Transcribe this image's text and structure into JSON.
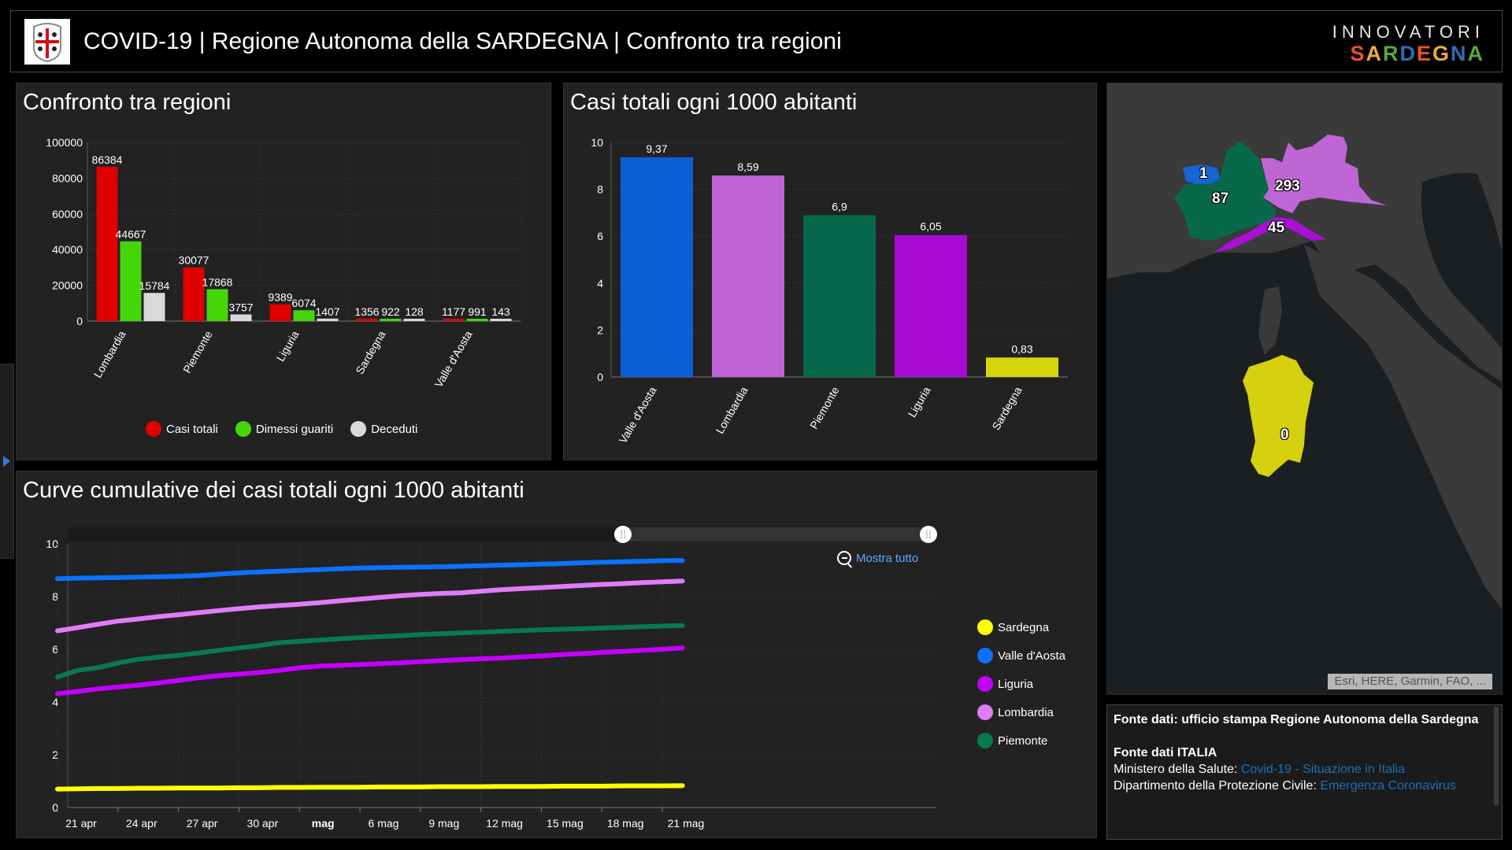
{
  "header": {
    "title": "COVID-19 | Regione Autonoma della SARDEGNA | Confronto tra regioni",
    "logo_icon": "sardinia-coat-of-arms-icon",
    "brand_top": "INNOVATORI",
    "brand_bottom_letters": [
      "S",
      "A",
      "R",
      "D",
      "E",
      "G",
      "N",
      "A"
    ],
    "brand_bottom_colors": [
      "#e8532b",
      "#f2a93b",
      "#5aa83c",
      "#2f6db5",
      "#e8532b",
      "#f2a93b",
      "#2f6db5",
      "#5aa83c"
    ]
  },
  "panels": {
    "bar1_title": "Confronto tra regioni",
    "bar2_title": "Casi totali ogni 1000 abitanti",
    "line_title": "Curve cumulative dei casi totali ogni 1000 abitanti"
  },
  "map": {
    "attribution": "Esri, HERE, Garmin, FAO, ...",
    "labels": [
      {
        "region": "Valle d'Aosta",
        "value": "1",
        "color": "#1565d8"
      },
      {
        "region": "Piemonte",
        "value": "87",
        "color": "#08694a"
      },
      {
        "region": "Lombardia",
        "value": "293",
        "color": "#be66d6"
      },
      {
        "region": "Liguria",
        "value": "45",
        "color": "#a90fd4"
      },
      {
        "region": "Sardegna",
        "value": "0",
        "color": "#d6d00f"
      }
    ]
  },
  "info": {
    "line1": "Fonte dati: ufficio stampa Regione Autonoma della Sardegna",
    "line2": "Fonte dati ITALIA",
    "ministero_label": "Ministero della Salute: ",
    "ministero_link": "Covid-19 - Situazione in Italia",
    "protezione_label": "Dipartimento della Protezione Civile: ",
    "protezione_link": "Emergenza Coronavirus"
  },
  "line_controls": {
    "show_all_label": "Mostra tutto",
    "zoom_range_start": 0.645,
    "zoom_range_end": 1.0
  },
  "chart_data": [
    {
      "type": "bar",
      "title": "Confronto tra regioni",
      "categories": [
        "Lombardia",
        "Piemonte",
        "Liguria",
        "Sardegna",
        "Valle d'Aosta"
      ],
      "series": [
        {
          "name": "Casi totali",
          "color": "#e00000",
          "values": [
            86384,
            30077,
            9389,
            1356,
            1177
          ]
        },
        {
          "name": "Dimessi guariti",
          "color": "#45d60a",
          "values": [
            44667,
            17868,
            6074,
            922,
            991
          ]
        },
        {
          "name": "Deceduti",
          "color": "#d9d9d9",
          "values": [
            15784,
            3757,
            1407,
            128,
            143
          ]
        }
      ],
      "yticks": [
        "0",
        "20000",
        "40000",
        "60000",
        "80000",
        "100000"
      ],
      "ylim": [
        0,
        100000
      ],
      "xlabel": "",
      "ylabel": "",
      "legend": "bottom",
      "grid": true
    },
    {
      "type": "bar",
      "title": "Casi totali ogni 1000 abitanti",
      "categories": [
        "Valle d'Aosta",
        "Lombardia",
        "Piemonte",
        "Liguria",
        "Sardegna"
      ],
      "values": [
        9.37,
        8.59,
        6.9,
        6.05,
        0.83
      ],
      "labels": [
        "9,37",
        "8,59",
        "6,9",
        "6,05",
        "0,83"
      ],
      "colors": [
        "#0b5fd6",
        "#bd63d6",
        "#07674a",
        "#a80ad3",
        "#d6d40b"
      ],
      "yticks": [
        "0",
        "2",
        "4",
        "6",
        "8",
        "10"
      ],
      "ylim": [
        0,
        10
      ],
      "xlabel": "",
      "ylabel": "",
      "grid": true
    },
    {
      "type": "line",
      "title": "Curve cumulative dei casi totali ogni 1000 abitanti",
      "x_start": "21 apr",
      "x_end": "22 mag",
      "xticks": [
        "21 apr",
        "24 apr",
        "27 apr",
        "30 apr",
        "mag",
        "6 mag",
        "9 mag",
        "12 mag",
        "15 mag",
        "18 mag",
        "21 mag"
      ],
      "yticks": [
        "0",
        "2",
        "4",
        "6",
        "8",
        "10"
      ],
      "ylim": [
        0,
        10
      ],
      "legend": "right",
      "grid": true,
      "series": [
        {
          "name": "Sardegna",
          "color": "#ffff00",
          "values": [
            0.7,
            0.71,
            0.72,
            0.72,
            0.73,
            0.73,
            0.74,
            0.74,
            0.74,
            0.75,
            0.75,
            0.76,
            0.76,
            0.77,
            0.77,
            0.77,
            0.78,
            0.78,
            0.78,
            0.79,
            0.79,
            0.79,
            0.8,
            0.8,
            0.8,
            0.81,
            0.81,
            0.81,
            0.82,
            0.82,
            0.82,
            0.83
          ]
        },
        {
          "name": "Valle d'Aosta",
          "color": "#0a72ff",
          "values": [
            8.68,
            8.7,
            8.71,
            8.72,
            8.74,
            8.75,
            8.77,
            8.8,
            8.85,
            8.9,
            8.93,
            8.96,
            8.99,
            9.02,
            9.05,
            9.08,
            9.1,
            9.11,
            9.12,
            9.13,
            9.15,
            9.17,
            9.19,
            9.21,
            9.23,
            9.25,
            9.28,
            9.3,
            9.32,
            9.34,
            9.36,
            9.37
          ]
        },
        {
          "name": "Liguria",
          "color": "#c300ff",
          "values": [
            4.32,
            4.4,
            4.5,
            4.57,
            4.64,
            4.72,
            4.82,
            4.92,
            5.0,
            5.06,
            5.12,
            5.2,
            5.3,
            5.36,
            5.39,
            5.42,
            5.45,
            5.49,
            5.53,
            5.57,
            5.61,
            5.64,
            5.67,
            5.71,
            5.75,
            5.8,
            5.84,
            5.88,
            5.92,
            5.96,
            6.0,
            6.05
          ]
        },
        {
          "name": "Lombardia",
          "color": "#e07cfa",
          "values": [
            6.7,
            6.82,
            6.95,
            7.07,
            7.15,
            7.24,
            7.31,
            7.39,
            7.47,
            7.54,
            7.61,
            7.66,
            7.71,
            7.77,
            7.84,
            7.9,
            7.97,
            8.03,
            8.08,
            8.12,
            8.14,
            8.2,
            8.26,
            8.3,
            8.34,
            8.38,
            8.42,
            8.46,
            8.49,
            8.53,
            8.56,
            8.59
          ]
        },
        {
          "name": "Piemonte",
          "color": "#087a4c",
          "values": [
            4.95,
            5.2,
            5.3,
            5.48,
            5.62,
            5.7,
            5.77,
            5.86,
            5.96,
            6.05,
            6.14,
            6.25,
            6.3,
            6.35,
            6.4,
            6.44,
            6.48,
            6.52,
            6.56,
            6.59,
            6.62,
            6.65,
            6.68,
            6.71,
            6.74,
            6.76,
            6.78,
            6.81,
            6.83,
            6.86,
            6.88,
            6.9
          ]
        }
      ]
    }
  ]
}
